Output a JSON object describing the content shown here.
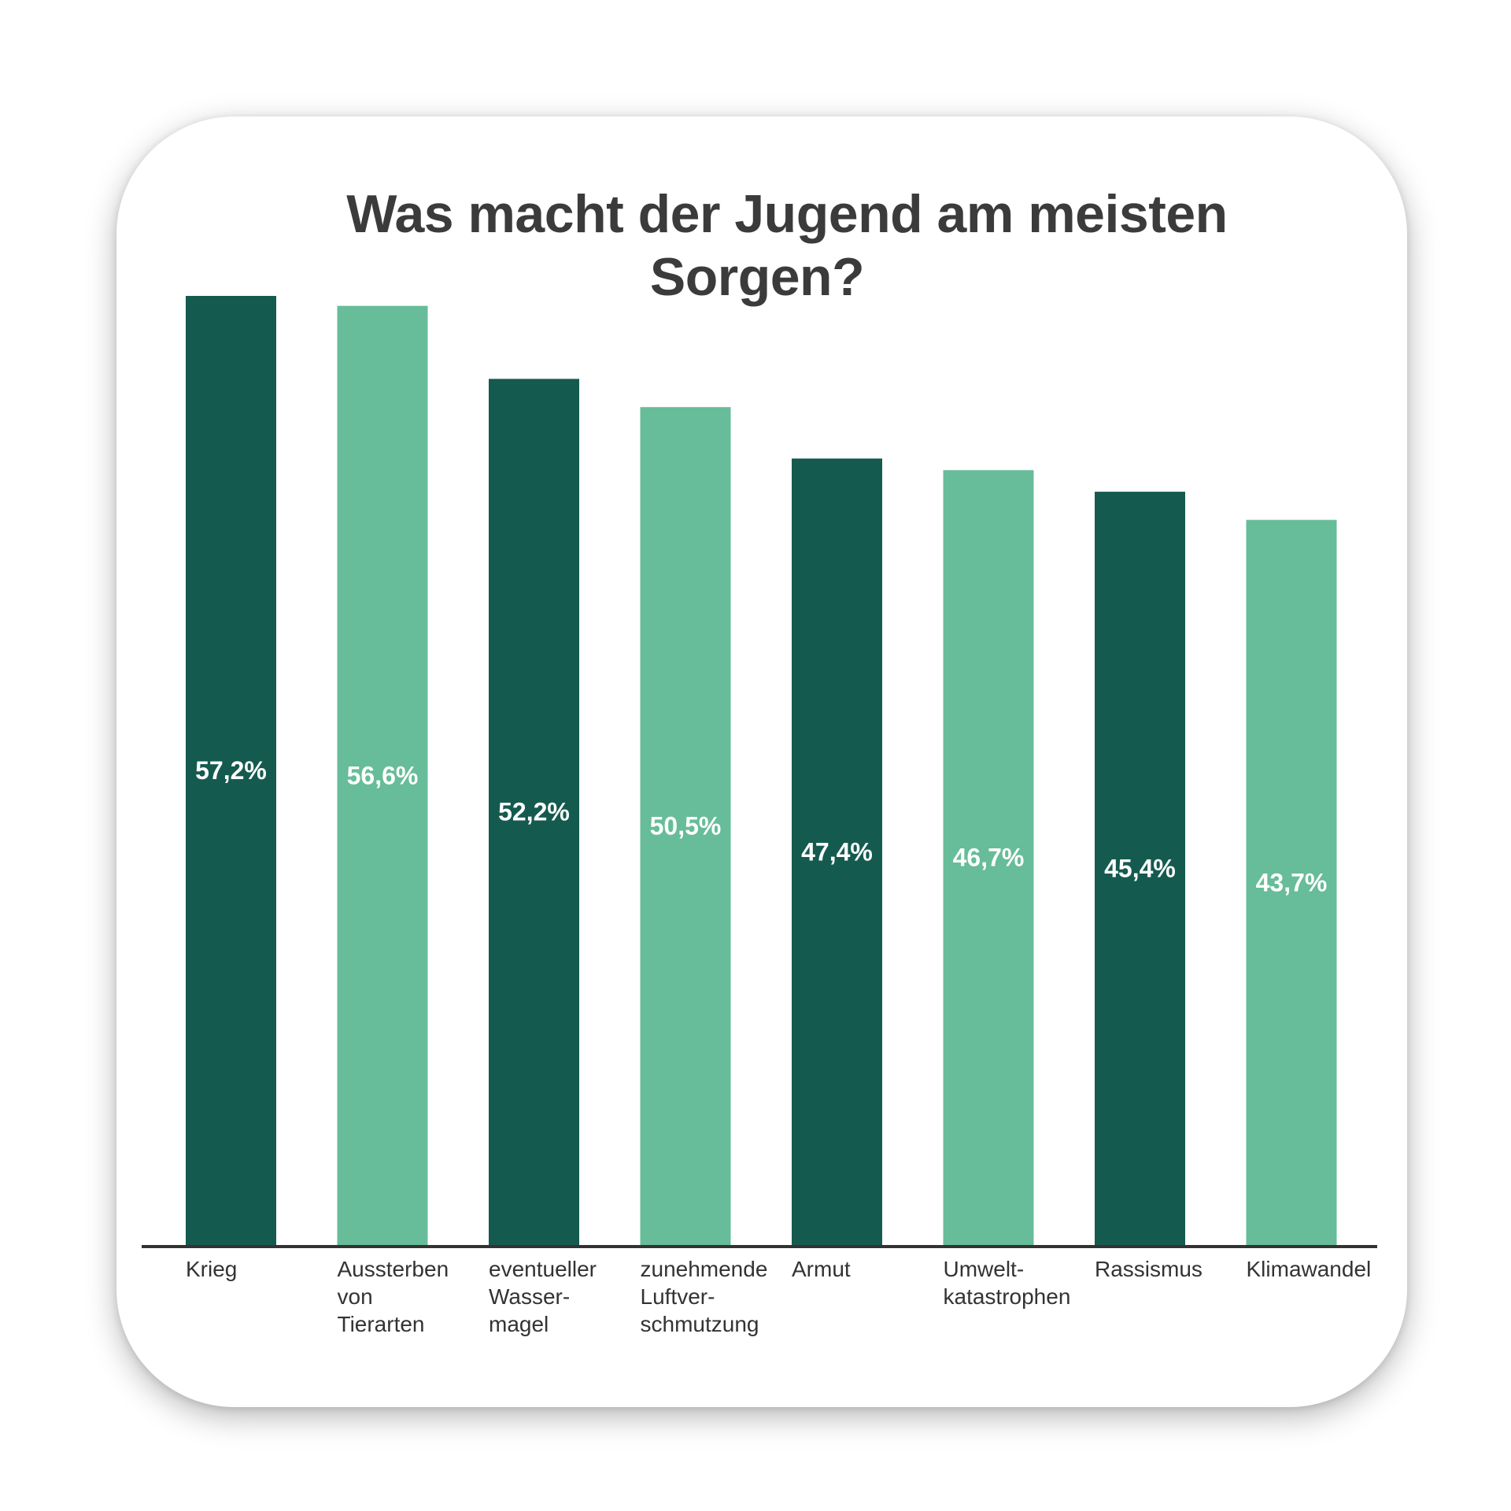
{
  "chart_data": {
    "type": "bar",
    "title": "Was macht der Jugend am meisten Sorgen?",
    "title_lines": [
      "Was macht der Jugend am meisten",
      "Sorgen?"
    ],
    "categories": [
      "Krieg",
      "Aussterben von Tierarten",
      "eventueller Wasser-magel",
      "zunehmende Luftver-schmutzung",
      "Armut",
      "Umwelt-katastrophen",
      "Rassismus",
      "Klimawandel"
    ],
    "category_lines": [
      [
        "Krieg"
      ],
      [
        "Aussterben",
        "von",
        "Tierarten"
      ],
      [
        "eventueller",
        "Wasser-",
        "magel"
      ],
      [
        "zunehmende",
        "Luftver-",
        "schmutzung"
      ],
      [
        "Armut"
      ],
      [
        "Umwelt-",
        "katastrophen"
      ],
      [
        "Rassismus"
      ],
      [
        "Klimawandel"
      ]
    ],
    "values": [
      57.2,
      56.6,
      52.2,
      50.5,
      47.4,
      46.7,
      45.4,
      43.7
    ],
    "value_labels": [
      "57,2%",
      "56,6%",
      "52,2%",
      "50,5%",
      "47,4%",
      "46,7%",
      "45,4%",
      "43,7%"
    ],
    "xlabel": "",
    "ylabel": "",
    "ylim": [
      0,
      57.2
    ],
    "grid": false,
    "legend": "none",
    "colors": {
      "dark": "#155a4f",
      "light": "#67bc99",
      "axis": "#333333",
      "title": "#3b3b3b",
      "label": "#333333",
      "value_text": "#ffffff"
    },
    "bar_color_pattern": [
      "dark",
      "light",
      "dark",
      "light",
      "dark",
      "light",
      "dark",
      "light"
    ]
  }
}
